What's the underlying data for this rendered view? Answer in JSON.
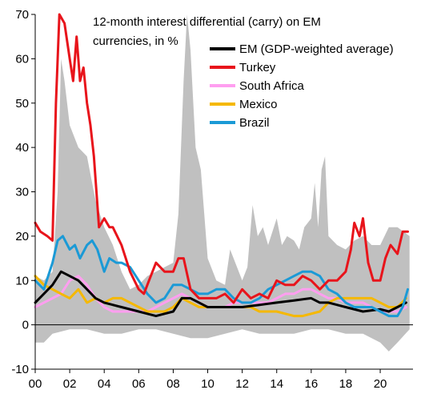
{
  "chart_data": {
    "type": "line",
    "title": "12-month interest differential (carry) on EM currencies, in %",
    "title_lines": [
      "12-month interest differential (carry) on EM",
      "currencies, in %"
    ],
    "xlabel": "",
    "ylabel": "",
    "xlim": [
      2000,
      2021.9
    ],
    "ylim": [
      -10,
      70
    ],
    "x_ticks": [
      2000,
      2002,
      2004,
      2006,
      2008,
      2010,
      2012,
      2014,
      2016,
      2018,
      2020
    ],
    "x_tick_labels": [
      "00",
      "02",
      "04",
      "06",
      "08",
      "10",
      "12",
      "14",
      "16",
      "18",
      "20"
    ],
    "y_ticks": [
      -10,
      0,
      10,
      20,
      30,
      40,
      50,
      60,
      70
    ],
    "y_tick_labels": [
      "-10",
      "0",
      "10",
      "20",
      "30",
      "40",
      "50",
      "60",
      "70"
    ],
    "grid": false,
    "legend_position": "top-right",
    "band": {
      "color": "#c0c0c0",
      "upper": [
        [
          2000,
          11
        ],
        [
          2000.5,
          10
        ],
        [
          2001,
          12
        ],
        [
          2001.3,
          30
        ],
        [
          2001.5,
          60
        ],
        [
          2001.7,
          55
        ],
        [
          2002,
          45
        ],
        [
          2002.5,
          40
        ],
        [
          2003,
          38
        ],
        [
          2003.5,
          28
        ],
        [
          2004,
          22
        ],
        [
          2004.5,
          18
        ],
        [
          2005,
          12
        ],
        [
          2005.5,
          8
        ],
        [
          2006,
          9
        ],
        [
          2006.5,
          11
        ],
        [
          2007,
          12
        ],
        [
          2007.5,
          13
        ],
        [
          2008,
          14
        ],
        [
          2008.3,
          25
        ],
        [
          2008.6,
          55
        ],
        [
          2008.8,
          70
        ],
        [
          2009,
          62
        ],
        [
          2009.3,
          40
        ],
        [
          2009.6,
          35
        ],
        [
          2010,
          15
        ],
        [
          2010.5,
          10
        ],
        [
          2011,
          9
        ],
        [
          2011.3,
          17
        ],
        [
          2011.6,
          14
        ],
        [
          2012,
          10
        ],
        [
          2012.3,
          13
        ],
        [
          2012.6,
          27
        ],
        [
          2012.9,
          20
        ],
        [
          2013.2,
          22
        ],
        [
          2013.5,
          18
        ],
        [
          2014,
          24
        ],
        [
          2014.3,
          18
        ],
        [
          2014.6,
          20
        ],
        [
          2015,
          19
        ],
        [
          2015.3,
          17
        ],
        [
          2015.6,
          22
        ],
        [
          2016,
          24
        ],
        [
          2016.2,
          32
        ],
        [
          2016.4,
          22
        ],
        [
          2016.6,
          35
        ],
        [
          2016.8,
          38
        ],
        [
          2017,
          20
        ],
        [
          2017.5,
          18
        ],
        [
          2018,
          17
        ],
        [
          2018.5,
          19
        ],
        [
          2019,
          20
        ],
        [
          2019.5,
          18
        ],
        [
          2020,
          18
        ],
        [
          2020.5,
          22
        ],
        [
          2021,
          22
        ],
        [
          2021.7,
          20
        ]
      ],
      "lower": [
        [
          2000,
          -4
        ],
        [
          2000.5,
          -4
        ],
        [
          2001,
          -2
        ],
        [
          2002,
          -1
        ],
        [
          2003,
          -1
        ],
        [
          2004,
          -2
        ],
        [
          2005,
          -2
        ],
        [
          2006,
          -1
        ],
        [
          2007,
          -1
        ],
        [
          2008,
          -2
        ],
        [
          2009,
          -3
        ],
        [
          2010,
          -3
        ],
        [
          2011,
          -2
        ],
        [
          2012,
          -1
        ],
        [
          2013,
          -2
        ],
        [
          2014,
          -2
        ],
        [
          2015,
          -2
        ],
        [
          2016,
          -1
        ],
        [
          2017,
          -1
        ],
        [
          2018,
          -2
        ],
        [
          2019,
          -2
        ],
        [
          2020,
          -4
        ],
        [
          2020.5,
          -6
        ],
        [
          2021,
          -4
        ],
        [
          2021.7,
          -1
        ]
      ]
    },
    "series": [
      {
        "name": "EM (GDP-weighted average)",
        "color": "#000000",
        "points": [
          [
            2000,
            5
          ],
          [
            2000.5,
            7
          ],
          [
            2001,
            9
          ],
          [
            2001.5,
            12
          ],
          [
            2002,
            11
          ],
          [
            2002.5,
            10
          ],
          [
            2003,
            8
          ],
          [
            2003.5,
            6
          ],
          [
            2004,
            5
          ],
          [
            2005,
            4
          ],
          [
            2006,
            3
          ],
          [
            2006.5,
            2.5
          ],
          [
            2007,
            2
          ],
          [
            2007.5,
            2.5
          ],
          [
            2008,
            3
          ],
          [
            2008.5,
            6
          ],
          [
            2009,
            6
          ],
          [
            2009.5,
            5
          ],
          [
            2010,
            4
          ],
          [
            2011,
            4
          ],
          [
            2012,
            4
          ],
          [
            2013,
            4.5
          ],
          [
            2014,
            5
          ],
          [
            2015,
            5.5
          ],
          [
            2016,
            6
          ],
          [
            2016.5,
            5
          ],
          [
            2017,
            5
          ],
          [
            2018,
            4
          ],
          [
            2019,
            3
          ],
          [
            2020,
            3.5
          ],
          [
            2020.5,
            3
          ],
          [
            2021,
            4
          ],
          [
            2021.5,
            5
          ]
        ]
      },
      {
        "name": "Turkey",
        "color": "#e8141b",
        "points": [
          [
            2000,
            23
          ],
          [
            2000.3,
            21
          ],
          [
            2000.7,
            20
          ],
          [
            2001,
            19
          ],
          [
            2001.2,
            50
          ],
          [
            2001.4,
            72
          ],
          [
            2001.7,
            68
          ],
          [
            2002,
            60
          ],
          [
            2002.2,
            55
          ],
          [
            2002.4,
            65
          ],
          [
            2002.6,
            55
          ],
          [
            2002.8,
            58
          ],
          [
            2003,
            50
          ],
          [
            2003.2,
            45
          ],
          [
            2003.4,
            38
          ],
          [
            2003.7,
            22
          ],
          [
            2004,
            24
          ],
          [
            2004.3,
            22
          ],
          [
            2004.5,
            22
          ],
          [
            2005,
            18
          ],
          [
            2005.5,
            12
          ],
          [
            2006,
            8
          ],
          [
            2006.3,
            7
          ],
          [
            2006.6,
            10
          ],
          [
            2007,
            14
          ],
          [
            2007.5,
            12
          ],
          [
            2008,
            12
          ],
          [
            2008.3,
            15
          ],
          [
            2008.6,
            15
          ],
          [
            2009,
            8
          ],
          [
            2009.5,
            6
          ],
          [
            2010,
            6
          ],
          [
            2010.5,
            6
          ],
          [
            2011,
            7
          ],
          [
            2011.5,
            5
          ],
          [
            2012,
            8
          ],
          [
            2012.5,
            6
          ],
          [
            2013,
            7
          ],
          [
            2013.5,
            6
          ],
          [
            2014,
            10
          ],
          [
            2014.5,
            9
          ],
          [
            2015,
            9
          ],
          [
            2015.5,
            11
          ],
          [
            2016,
            10
          ],
          [
            2016.5,
            8
          ],
          [
            2017,
            10
          ],
          [
            2017.5,
            10
          ],
          [
            2018,
            12
          ],
          [
            2018.3,
            17
          ],
          [
            2018.5,
            23
          ],
          [
            2018.8,
            20
          ],
          [
            2019,
            24
          ],
          [
            2019.3,
            14
          ],
          [
            2019.6,
            10
          ],
          [
            2020,
            10
          ],
          [
            2020.3,
            15
          ],
          [
            2020.6,
            18
          ],
          [
            2021,
            16
          ],
          [
            2021.3,
            21
          ],
          [
            2021.6,
            21
          ]
        ]
      },
      {
        "name": "South Africa",
        "color": "#ff9ef0",
        "points": [
          [
            2000,
            4
          ],
          [
            2000.5,
            5
          ],
          [
            2001,
            6
          ],
          [
            2001.5,
            7
          ],
          [
            2002,
            10
          ],
          [
            2002.5,
            11
          ],
          [
            2003,
            9
          ],
          [
            2003.5,
            6
          ],
          [
            2004,
            4
          ],
          [
            2004.5,
            3
          ],
          [
            2005,
            3
          ],
          [
            2005.5,
            3
          ],
          [
            2006,
            3
          ],
          [
            2006.5,
            3
          ],
          [
            2007,
            4
          ],
          [
            2007.5,
            5
          ],
          [
            2008,
            6
          ],
          [
            2008.5,
            7
          ],
          [
            2009,
            6
          ],
          [
            2009.5,
            5
          ],
          [
            2010,
            4
          ],
          [
            2010.5,
            4
          ],
          [
            2011,
            4
          ],
          [
            2011.5,
            5
          ],
          [
            2012,
            5
          ],
          [
            2012.5,
            5
          ],
          [
            2013,
            5
          ],
          [
            2013.5,
            5
          ],
          [
            2014,
            6
          ],
          [
            2014.5,
            7
          ],
          [
            2015,
            7
          ],
          [
            2015.5,
            8
          ],
          [
            2016,
            8
          ],
          [
            2016.5,
            7
          ],
          [
            2017,
            6
          ],
          [
            2017.5,
            6
          ],
          [
            2018,
            5
          ],
          [
            2018.5,
            5
          ],
          [
            2019,
            5
          ],
          [
            2019.5,
            4
          ],
          [
            2020,
            3
          ],
          [
            2020.5,
            3
          ],
          [
            2021,
            3
          ],
          [
            2021.5,
            4
          ]
        ]
      },
      {
        "name": "Mexico",
        "color": "#f5b800",
        "points": [
          [
            2000,
            11
          ],
          [
            2000.5,
            9
          ],
          [
            2001,
            8
          ],
          [
            2001.5,
            7
          ],
          [
            2002,
            6
          ],
          [
            2002.5,
            8
          ],
          [
            2003,
            5
          ],
          [
            2003.5,
            6
          ],
          [
            2004,
            5
          ],
          [
            2004.5,
            6
          ],
          [
            2005,
            6
          ],
          [
            2005.5,
            5
          ],
          [
            2006,
            4
          ],
          [
            2006.5,
            3
          ],
          [
            2007,
            3
          ],
          [
            2007.5,
            3
          ],
          [
            2008,
            4
          ],
          [
            2008.5,
            6
          ],
          [
            2009,
            5
          ],
          [
            2009.5,
            4
          ],
          [
            2010,
            4
          ],
          [
            2010.5,
            4
          ],
          [
            2011,
            4
          ],
          [
            2011.5,
            4
          ],
          [
            2012,
            4
          ],
          [
            2012.5,
            4
          ],
          [
            2013,
            3
          ],
          [
            2013.5,
            3
          ],
          [
            2014,
            3
          ],
          [
            2014.5,
            2.5
          ],
          [
            2015,
            2
          ],
          [
            2015.5,
            2
          ],
          [
            2016,
            2.5
          ],
          [
            2016.5,
            3
          ],
          [
            2017,
            5
          ],
          [
            2017.5,
            6
          ],
          [
            2018,
            6
          ],
          [
            2018.5,
            6
          ],
          [
            2019,
            6
          ],
          [
            2019.5,
            6
          ],
          [
            2020,
            5
          ],
          [
            2020.5,
            4
          ],
          [
            2021,
            4
          ],
          [
            2021.5,
            6
          ]
        ]
      },
      {
        "name": "Brazil",
        "color": "#1b9ad6",
        "points": [
          [
            2000,
            10
          ],
          [
            2000.5,
            8
          ],
          [
            2001,
            14
          ],
          [
            2001.3,
            19
          ],
          [
            2001.6,
            20
          ],
          [
            2002,
            17
          ],
          [
            2002.3,
            18
          ],
          [
            2002.6,
            15
          ],
          [
            2003,
            18
          ],
          [
            2003.3,
            19
          ],
          [
            2003.6,
            17
          ],
          [
            2004,
            12
          ],
          [
            2004.3,
            15
          ],
          [
            2004.7,
            14
          ],
          [
            2005,
            14
          ],
          [
            2005.5,
            13
          ],
          [
            2006,
            10
          ],
          [
            2006.5,
            7
          ],
          [
            2007,
            5
          ],
          [
            2007.5,
            6
          ],
          [
            2008,
            9
          ],
          [
            2008.5,
            9
          ],
          [
            2009,
            8
          ],
          [
            2009.5,
            7
          ],
          [
            2010,
            7
          ],
          [
            2010.5,
            8
          ],
          [
            2011,
            8
          ],
          [
            2011.5,
            6
          ],
          [
            2012,
            5
          ],
          [
            2012.5,
            5
          ],
          [
            2013,
            6
          ],
          [
            2013.5,
            8
          ],
          [
            2014,
            9
          ],
          [
            2014.5,
            10
          ],
          [
            2015,
            11
          ],
          [
            2015.5,
            12
          ],
          [
            2016,
            12
          ],
          [
            2016.5,
            11
          ],
          [
            2017,
            8
          ],
          [
            2017.5,
            7
          ],
          [
            2018,
            5
          ],
          [
            2018.5,
            4
          ],
          [
            2019,
            4
          ],
          [
            2019.5,
            4
          ],
          [
            2020,
            3
          ],
          [
            2020.5,
            2
          ],
          [
            2021,
            2
          ],
          [
            2021.3,
            4
          ],
          [
            2021.6,
            8
          ]
        ]
      }
    ]
  }
}
